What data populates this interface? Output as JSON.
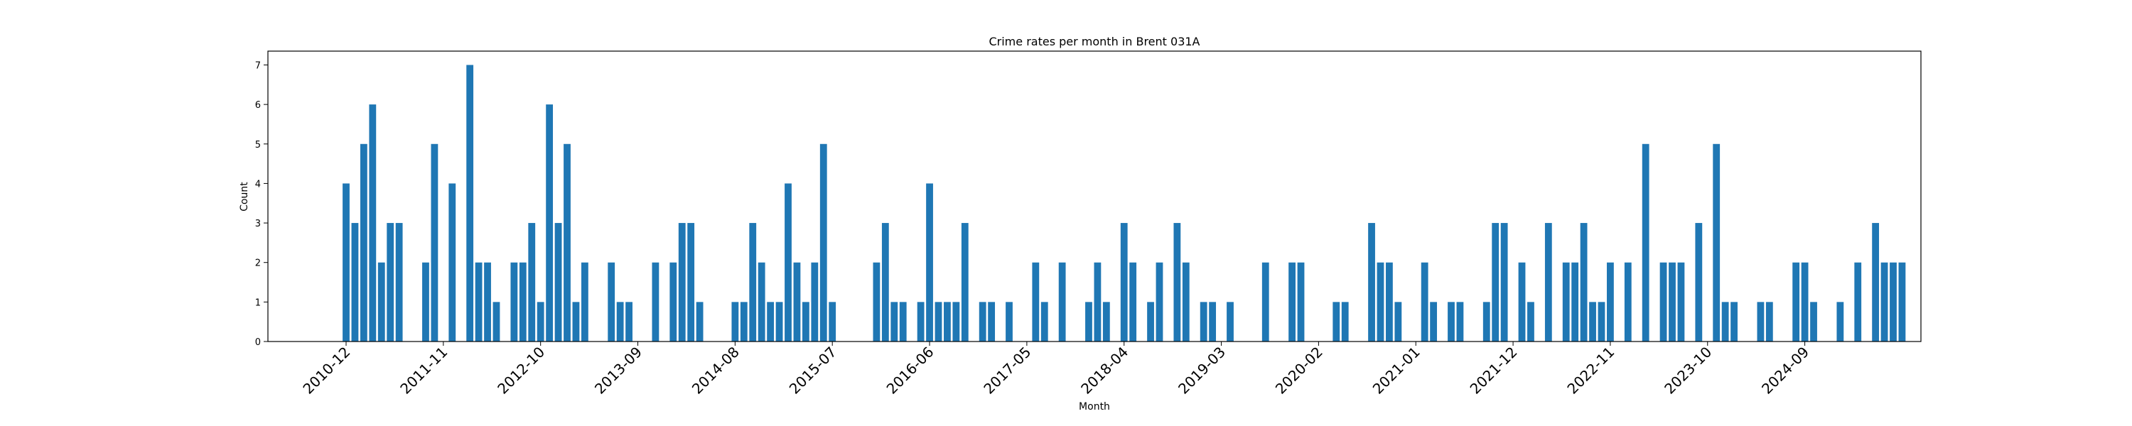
{
  "chart_data": {
    "type": "bar",
    "title": "Crime rates per month in Brent 031A",
    "xlabel": "Month",
    "ylabel": "Count",
    "start_month": "2010-12",
    "ylim": [
      0,
      7.35
    ],
    "yticks": [
      0,
      1,
      2,
      3,
      4,
      5,
      6,
      7
    ],
    "xtick_labels": [
      "2010-12",
      "2011-11",
      "2012-10",
      "2013-09",
      "2014-08",
      "2015-07",
      "2016-06",
      "2017-05",
      "2018-04",
      "2019-03",
      "2020-02",
      "2021-01",
      "2021-12",
      "2022-11",
      "2023-10",
      "2024-09"
    ],
    "bar_color": "#1f77b4",
    "grid": false,
    "values": [
      4,
      3,
      5,
      6,
      2,
      3,
      3,
      0,
      0,
      2,
      5,
      0,
      4,
      0,
      7,
      2,
      2,
      1,
      0,
      2,
      2,
      3,
      1,
      6,
      3,
      5,
      1,
      2,
      0,
      0,
      2,
      1,
      1,
      0,
      0,
      2,
      0,
      2,
      3,
      3,
      1,
      0,
      0,
      0,
      1,
      1,
      3,
      2,
      1,
      1,
      4,
      2,
      1,
      2,
      5,
      1,
      0,
      0,
      0,
      0,
      2,
      3,
      1,
      1,
      0,
      1,
      4,
      1,
      1,
      1,
      3,
      0,
      1,
      1,
      0,
      1,
      0,
      0,
      2,
      1,
      0,
      2,
      0,
      0,
      1,
      2,
      1,
      0,
      3,
      2,
      0,
      1,
      2,
      0,
      3,
      2,
      0,
      1,
      1,
      0,
      1,
      0,
      0,
      0,
      2,
      0,
      0,
      2,
      2,
      0,
      0,
      0,
      1,
      1,
      0,
      0,
      3,
      2,
      2,
      1,
      0,
      0,
      2,
      1,
      0,
      1,
      1,
      0,
      0,
      1,
      3,
      3,
      0,
      2,
      1,
      0,
      3,
      0,
      2,
      2,
      3,
      1,
      1,
      2,
      0,
      2,
      0,
      5,
      0,
      2,
      2,
      2,
      0,
      3,
      0,
      5,
      1,
      1,
      0,
      0,
      1,
      1,
      0,
      0,
      2,
      2,
      1,
      0,
      0,
      1,
      0,
      2,
      0,
      3,
      2,
      2,
      2
    ]
  }
}
